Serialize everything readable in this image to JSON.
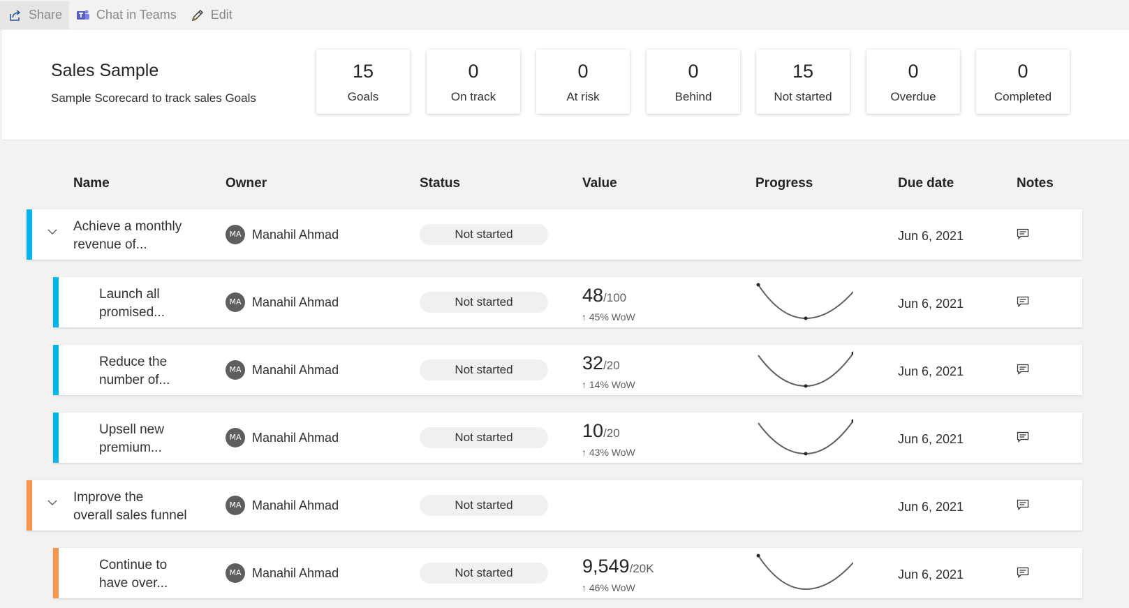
{
  "toolbar": {
    "share_label": "Share",
    "chat_label": "Chat in Teams",
    "edit_label": "Edit",
    "accent_color": "#5b5fc7"
  },
  "scorecard": {
    "title": "Sales Sample",
    "description": "Sample Scorecard to track sales Goals"
  },
  "kpis": [
    {
      "value": "15",
      "label": "Goals"
    },
    {
      "value": "0",
      "label": "On track"
    },
    {
      "value": "0",
      "label": "At risk"
    },
    {
      "value": "0",
      "label": "Behind"
    },
    {
      "value": "15",
      "label": "Not started"
    },
    {
      "value": "0",
      "label": "Overdue"
    },
    {
      "value": "0",
      "label": "Completed"
    }
  ],
  "columns": {
    "name": "Name",
    "owner": "Owner",
    "status": "Status",
    "value": "Value",
    "progress": "Progress",
    "due": "Due date",
    "notes": "Notes"
  },
  "rows": [
    {
      "name_line1": "Achieve a monthly",
      "name_line2": "revenue of...",
      "owner_initials": "MA",
      "owner": "Manahil Ahmad",
      "status": "Not started",
      "value": "",
      "target": "",
      "wow": "",
      "due": "Jun 6, 2021",
      "accent": "#00b7eb",
      "level": "parent"
    },
    {
      "name_line1": "Launch all",
      "name_line2": "promised...",
      "owner_initials": "MA",
      "owner": "Manahil Ahmad",
      "status": "Not started",
      "value": "48",
      "target": "/100",
      "wow": "↑ 45% WoW",
      "due": "Jun 6, 2021",
      "accent": "#00b7eb",
      "level": "child"
    },
    {
      "name_line1": "Reduce the",
      "name_line2": "number of...",
      "owner_initials": "MA",
      "owner": "Manahil Ahmad",
      "status": "Not started",
      "value": "32",
      "target": "/20",
      "wow": "↑ 14% WoW",
      "due": "Jun 6, 2021",
      "accent": "#00b7eb",
      "level": "child"
    },
    {
      "name_line1": "Upsell new",
      "name_line2": "premium...",
      "owner_initials": "MA",
      "owner": "Manahil Ahmad",
      "status": "Not started",
      "value": "10",
      "target": "/20",
      "wow": "↑ 43% WoW",
      "due": "Jun 6, 2021",
      "accent": "#00b7eb",
      "level": "child"
    },
    {
      "name_line1": "Improve the",
      "name_line2": "overall sales funnel",
      "owner_initials": "MA",
      "owner": "Manahil Ahmad",
      "status": "Not started",
      "value": "",
      "target": "",
      "wow": "",
      "due": "Jun 6, 2021",
      "accent": "#f7954a",
      "level": "parent"
    },
    {
      "name_line1": "Continue to",
      "name_line2": "have over...",
      "owner_initials": "MA",
      "owner": "Manahil Ahmad",
      "status": "Not started",
      "value": "9,549",
      "target": "/20K",
      "wow": "↑ 46% WoW",
      "due": "Jun 6, 2021",
      "accent": "#f7954a",
      "level": "child"
    }
  ]
}
